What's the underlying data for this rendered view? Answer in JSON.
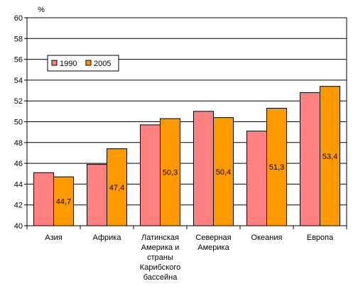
{
  "chart_data": {
    "type": "bar",
    "unit_label": "%",
    "categories": [
      [
        "Азия"
      ],
      [
        "Африка"
      ],
      [
        "Латинская",
        "Америка и",
        "страны",
        "Карибского",
        "бассейна"
      ],
      [
        "Северная",
        "Америка"
      ],
      [
        "Океания"
      ],
      [
        "Европа"
      ]
    ],
    "series": [
      {
        "name": "1990",
        "color": "#ff8080",
        "values": [
          45.1,
          45.9,
          49.7,
          51.0,
          49.1,
          52.8
        ],
        "labels": [
          "",
          "",
          "",
          "",
          "",
          ""
        ]
      },
      {
        "name": "2005",
        "color": "#ff9900",
        "values": [
          44.7,
          47.4,
          50.3,
          50.4,
          51.3,
          53.4
        ],
        "labels": [
          "44,7",
          "47,4",
          "50,3",
          "50,4",
          "51,3",
          "53,4"
        ]
      }
    ],
    "ylim": [
      40,
      60
    ],
    "yticks": [
      40,
      42,
      44,
      46,
      48,
      50,
      52,
      54,
      56,
      58,
      60
    ],
    "grid": true,
    "legend": "top-left"
  }
}
